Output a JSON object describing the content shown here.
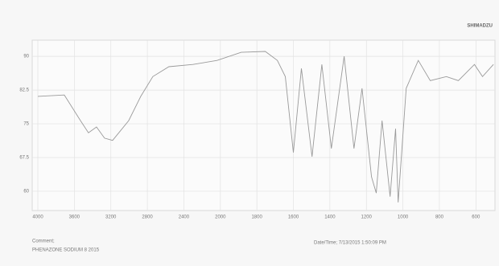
{
  "chart_data": {
    "type": "line",
    "brand": "SHIMADZU",
    "x": [
      4000,
      3710,
      3533,
      3445,
      3357,
      3269,
      3181,
      3004,
      2872,
      2740,
      2564,
      2300,
      2036,
      1886,
      1754,
      1688,
      1644,
      1600,
      1556,
      1498,
      1444,
      1392,
      1322,
      1268,
      1224,
      1172,
      1146,
      1114,
      1070,
      1040,
      1026,
      982,
      916,
      850,
      762,
      696,
      608,
      564,
      504
    ],
    "series": [
      {
        "color": "#9a9a9a",
        "values": [
          81.1,
          81.4,
          75.7,
          73.0,
          74.3,
          71.8,
          71.3,
          75.7,
          81.1,
          85.5,
          87.7,
          88.2,
          89.1,
          90.9,
          91.1,
          89.1,
          85.5,
          68.6,
          87.3,
          67.7,
          88.2,
          69.5,
          90,
          69.5,
          82.9,
          63.2,
          59.6,
          75.7,
          58.8,
          73.9,
          57.5,
          82.9,
          89.1,
          84.6,
          85.5,
          84.6,
          88.2,
          85.5,
          88.2
        ]
      }
    ],
    "xlim": [
      4000,
      500
    ],
    "xticks": [
      4000,
      3600,
      3200,
      2800,
      2400,
      2000,
      1800,
      1600,
      1400,
      1200,
      1000,
      800,
      600
    ],
    "ylim": [
      55.7,
      93.6
    ],
    "yticks": [
      60,
      67.5,
      75,
      82.5,
      90
    ],
    "grid": true,
    "comment_label": "Comment;",
    "comment": "PHENAZONE SODIUM 8 2015",
    "datetime": "Date/Time; 7/13/2015 1:50:09 PM"
  }
}
